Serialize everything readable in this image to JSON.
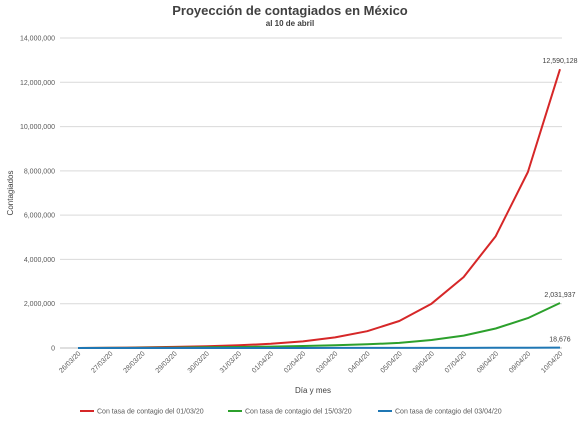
{
  "chart_data": {
    "type": "line",
    "title": "Proyección de contagiados en México",
    "subtitle": "al 10 de abril",
    "xlabel": "Día y mes",
    "ylabel": "Contagiados",
    "categories": [
      "26/03/20",
      "27/03/20",
      "28/03/20",
      "29/03/20",
      "30/03/20",
      "31/03/20",
      "01/04/20",
      "02/04/20",
      "03/04/20",
      "04/04/20",
      "05/04/20",
      "06/04/20",
      "07/04/20",
      "08/04/20",
      "09/04/20",
      "10/04/20"
    ],
    "ylim": [
      0,
      14000000
    ],
    "yticks": [
      {
        "value": 0,
        "label": "0"
      },
      {
        "value": 2000000,
        "label": "2,000,000"
      },
      {
        "value": 4000000,
        "label": "4,000,000"
      },
      {
        "value": 6000000,
        "label": "6,000,000"
      },
      {
        "value": 8000000,
        "label": "8,000,000"
      },
      {
        "value": 10000000,
        "label": "10,000,000"
      },
      {
        "value": 12000000,
        "label": "12,000,000"
      },
      {
        "value": 14000000,
        "label": "14,000,000"
      }
    ],
    "grid": true,
    "legend_position": "bottom",
    "series": [
      {
        "name": "Con tasa de contagio del 01/03/20",
        "color": "#d62728",
        "values": [
          585,
          10000,
          25000,
          50000,
          80000,
          120000,
          190000,
          300000,
          480000,
          760000,
          1220000,
          2000000,
          3200000,
          5050000,
          7950000,
          12590128
        ],
        "end_label": "12,590,128"
      },
      {
        "name": "Con tasa de contagio del 15/03/20",
        "color": "#2ca02c",
        "values": [
          585,
          5000,
          10000,
          20000,
          30000,
          45000,
          65000,
          90000,
          120000,
          165000,
          230000,
          360000,
          560000,
          880000,
          1350000,
          2031937
        ],
        "end_label": "2,031,937"
      },
      {
        "name": "Con tasa de contagio del 03/04/20",
        "color": "#1f77b4",
        "values": [
          585,
          700,
          850,
          1000,
          1200,
          1400,
          1700,
          2000,
          2400,
          2900,
          3500,
          4800,
          6600,
          9000,
          13000,
          18676
        ],
        "end_label": "18,676"
      }
    ]
  }
}
